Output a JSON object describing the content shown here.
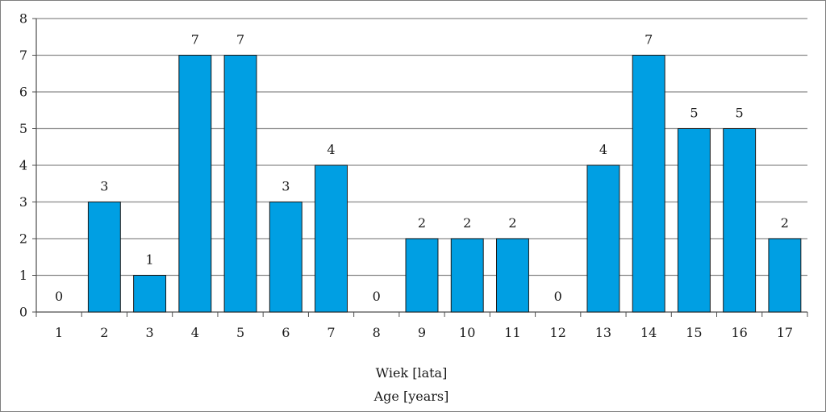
{
  "chart_data": {
    "type": "bar",
    "categories": [
      "1",
      "2",
      "3",
      "4",
      "5",
      "6",
      "7",
      "8",
      "9",
      "10",
      "11",
      "12",
      "13",
      "14",
      "15",
      "16",
      "17"
    ],
    "values": [
      0,
      3,
      1,
      7,
      7,
      3,
      4,
      0,
      2,
      2,
      2,
      0,
      4,
      7,
      5,
      5,
      2
    ],
    "data_labels": [
      "0",
      "3",
      "1",
      "7",
      "7",
      "3",
      "4",
      "0",
      "2",
      "2",
      "2",
      "0",
      "4",
      "7",
      "5",
      "5",
      "2"
    ],
    "yticks": [
      "0",
      "1",
      "2",
      "3",
      "4",
      "5",
      "6",
      "7",
      "8"
    ],
    "ylim": [
      0,
      8
    ],
    "xlabel_line1": "Wiek [lata]",
    "xlabel_line2": "Age [years]",
    "grid": true,
    "colors": {
      "bar": "#009fe3",
      "bar_edge": "#1a1a1a",
      "grid": "#8a8a8a",
      "axis": "#4d4d4d"
    }
  }
}
